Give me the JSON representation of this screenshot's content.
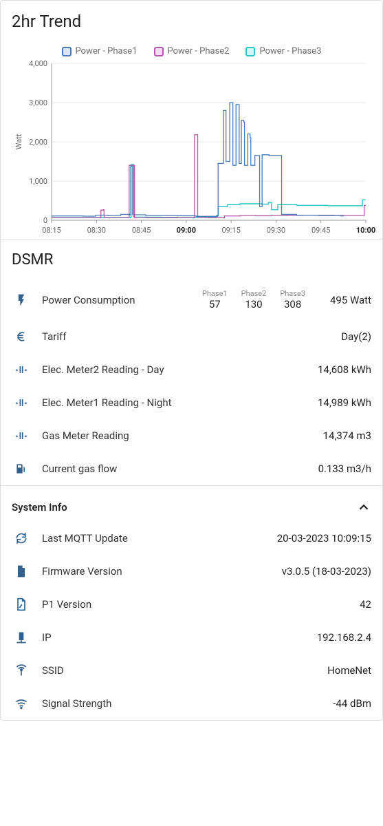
{
  "trend": {
    "title": "2hr Trend",
    "y_axis_label": "Watt",
    "legend": [
      {
        "label": "Power - Phase1",
        "color": "#4a7ab8"
      },
      {
        "label": "Power - Phase2",
        "color": "#b05aa5"
      },
      {
        "label": "Power - Phase3",
        "color": "#2cc6c6"
      }
    ],
    "y_ticks": [
      0,
      1000,
      2000,
      3000,
      4000
    ],
    "y_tick_labels": [
      "0",
      "1,000",
      "2,000",
      "3,000",
      "4,000"
    ],
    "ylim": [
      0,
      4000
    ],
    "x_ticks": [
      "08:15",
      "08:30",
      "08:45",
      "09:00",
      "09:15",
      "09:30",
      "09:45",
      "10:00"
    ],
    "x_bold": [
      "09:00",
      "10:00"
    ],
    "grid_color": "#e8e8e8",
    "axis_color": "#999",
    "bg_color": "#ffffff",
    "series": {
      "phase1": {
        "color": "#4a7ab8",
        "fill": "none",
        "width": 1.3,
        "points": [
          [
            0,
            110
          ],
          [
            0.1,
            105
          ],
          [
            0.14,
            130
          ],
          [
            0.18,
            120
          ],
          [
            0.22,
            150
          ],
          [
            0.248,
            140
          ],
          [
            0.252,
            1380
          ],
          [
            0.258,
            140
          ],
          [
            0.3,
            120
          ],
          [
            0.4,
            115
          ],
          [
            0.455,
            110
          ],
          [
            0.46,
            100
          ],
          [
            0.5,
            100
          ],
          [
            0.528,
            110
          ],
          [
            0.53,
            1450
          ],
          [
            0.545,
            1450
          ],
          [
            0.547,
            2800
          ],
          [
            0.553,
            2800
          ],
          [
            0.555,
            1500
          ],
          [
            0.565,
            1500
          ],
          [
            0.567,
            3000
          ],
          [
            0.575,
            3000
          ],
          [
            0.577,
            1400
          ],
          [
            0.585,
            1400
          ],
          [
            0.587,
            2950
          ],
          [
            0.595,
            2950
          ],
          [
            0.597,
            1450
          ],
          [
            0.602,
            1450
          ],
          [
            0.604,
            2550
          ],
          [
            0.612,
            2500
          ],
          [
            0.614,
            1400
          ],
          [
            0.622,
            1400
          ],
          [
            0.624,
            2200
          ],
          [
            0.632,
            2100
          ],
          [
            0.634,
            1400
          ],
          [
            0.645,
            1400
          ],
          [
            0.647,
            1650
          ],
          [
            0.66,
            1650
          ],
          [
            0.662,
            350
          ],
          [
            0.668,
            350
          ],
          [
            0.67,
            1670
          ],
          [
            0.69,
            1670
          ],
          [
            0.692,
            1650
          ],
          [
            0.73,
            1650
          ],
          [
            0.732,
            150
          ],
          [
            0.78,
            130
          ],
          [
            0.85,
            120
          ],
          [
            0.92,
            110
          ],
          [
            0.93,
            110
          ]
        ]
      },
      "phase2": {
        "color": "#b05aa5",
        "fill": "none",
        "width": 1.3,
        "points": [
          [
            0,
            70
          ],
          [
            0.155,
            65
          ],
          [
            0.157,
            260
          ],
          [
            0.165,
            270
          ],
          [
            0.167,
            70
          ],
          [
            0.245,
            70
          ],
          [
            0.247,
            1400
          ],
          [
            0.262,
            1400
          ],
          [
            0.264,
            70
          ],
          [
            0.3,
            65
          ],
          [
            0.4,
            70
          ],
          [
            0.453,
            65
          ],
          [
            0.455,
            2180
          ],
          [
            0.463,
            2180
          ],
          [
            0.465,
            70
          ],
          [
            0.5,
            65
          ],
          [
            0.55,
            110
          ],
          [
            0.6,
            120
          ],
          [
            0.65,
            115
          ],
          [
            0.7,
            120
          ],
          [
            0.75,
            125
          ],
          [
            0.8,
            130
          ],
          [
            0.85,
            130
          ],
          [
            0.9,
            125
          ],
          [
            0.93,
            120
          ],
          [
            0.993,
            120
          ],
          [
            0.995,
            380
          ],
          [
            1.0,
            380
          ]
        ]
      },
      "phase3": {
        "color": "#2cc6c6",
        "fill": "none",
        "width": 1.5,
        "points": [
          [
            0,
            70
          ],
          [
            0.2,
            75
          ],
          [
            0.251,
            70
          ],
          [
            0.253,
            1420
          ],
          [
            0.259,
            1420
          ],
          [
            0.261,
            80
          ],
          [
            0.35,
            75
          ],
          [
            0.5,
            90
          ],
          [
            0.525,
            120
          ],
          [
            0.53,
            350
          ],
          [
            0.56,
            400
          ],
          [
            0.6,
            420
          ],
          [
            0.65,
            420
          ],
          [
            0.67,
            410
          ],
          [
            0.69,
            450
          ],
          [
            0.7,
            270
          ],
          [
            0.72,
            400
          ],
          [
            0.78,
            380
          ],
          [
            0.83,
            380
          ],
          [
            0.88,
            370
          ],
          [
            0.93,
            370
          ],
          [
            0.987,
            370
          ],
          [
            0.989,
            520
          ],
          [
            1.0,
            520
          ]
        ]
      }
    }
  },
  "dsmr": {
    "title": "DSMR",
    "rows": {
      "power": {
        "label": "Power Consumption",
        "phases": [
          {
            "head": "Phase1",
            "val": "57"
          },
          {
            "head": "Phase2",
            "val": "130"
          },
          {
            "head": "Phase3",
            "val": "308"
          }
        ],
        "total": "495 Watt"
      },
      "tariff": {
        "label": "Tariff",
        "value": "Day(2)"
      },
      "meter2": {
        "label": "Elec. Meter2 Reading - Day",
        "value": "14,608 kWh"
      },
      "meter1": {
        "label": "Elec. Meter1 Reading - Night",
        "value": "14,989 kWh"
      },
      "gas": {
        "label": "Gas Meter Reading",
        "value": "14,374 m3"
      },
      "gasflow": {
        "label": "Current gas flow",
        "value": "0.133 m3/h"
      }
    }
  },
  "system": {
    "title": "System Info",
    "rows": {
      "mqtt": {
        "label": "Last MQTT Update",
        "value": "20-03-2023 10:09:15"
      },
      "fw": {
        "label": "Firmware Version",
        "value": "v3.0.5 (18-03-2023)"
      },
      "p1": {
        "label": "P1 Version",
        "value": "42"
      },
      "ip": {
        "label": "IP",
        "value": "192.168.2.4"
      },
      "ssid": {
        "label": "SSID",
        "value": "HomeNet"
      },
      "signal": {
        "label": "Signal Strength",
        "value": "-44 dBm"
      }
    }
  },
  "colors": {
    "icon": "#31628f",
    "text": "#222222",
    "muted": "#888888",
    "border": "#e0e0e0"
  }
}
